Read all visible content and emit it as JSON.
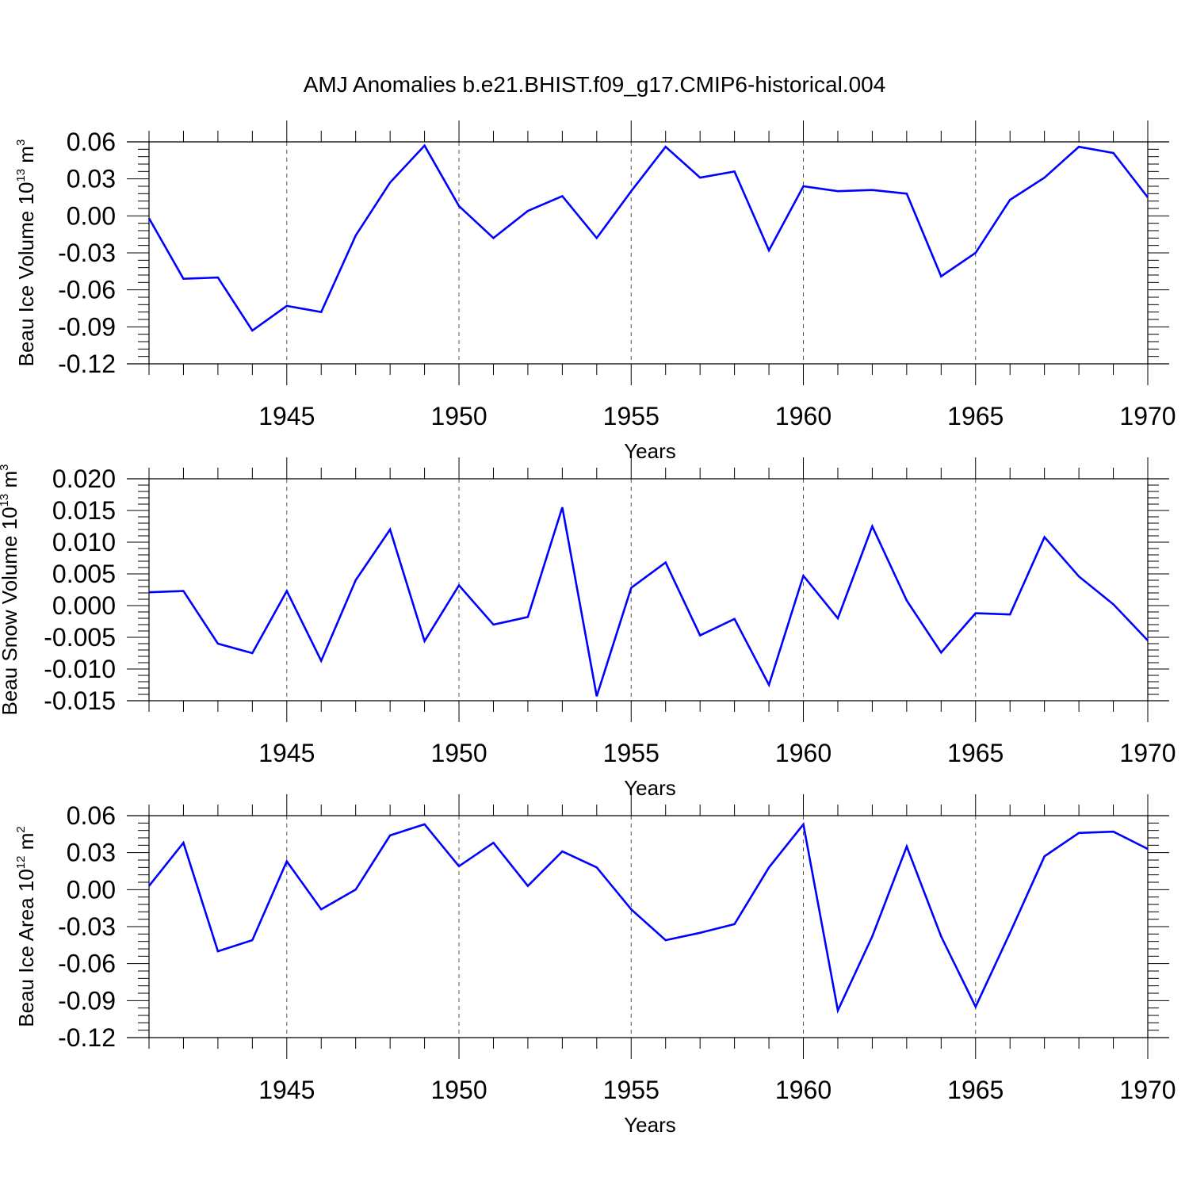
{
  "title": "AMJ Anomalies b.e21.BHIST.f09_g17.CMIP6-historical.004",
  "colors": {
    "line": "#0000ff",
    "axis": "#000000",
    "grid": "#555555"
  },
  "chart_data": [
    {
      "type": "line",
      "ylabel_parts": [
        "Beau Ice Volume 10",
        "13",
        " m",
        "3"
      ],
      "xlabel": "Years",
      "xlim": [
        1941,
        1970
      ],
      "ylim": [
        -0.12,
        0.06
      ],
      "x_ticks": [
        1945,
        1950,
        1955,
        1960,
        1965,
        1970
      ],
      "x_tick_labels": [
        "1945",
        "1950",
        "1955",
        "1960",
        "1965",
        "1970"
      ],
      "y_ticks": [
        -0.12,
        -0.09,
        -0.06,
        -0.03,
        0.0,
        0.03,
        0.06
      ],
      "y_tick_labels": [
        "-0.12",
        "-0.09",
        "-0.06",
        "-0.03",
        "0.00",
        "0.03",
        "0.06"
      ],
      "grid": "dashed vertical at major x ticks",
      "series": [
        {
          "name": "Beau Ice Volume",
          "x": [
            1941,
            1942,
            1943,
            1944,
            1945,
            1946,
            1947,
            1948,
            1949,
            1950,
            1951,
            1952,
            1953,
            1954,
            1955,
            1956,
            1957,
            1958,
            1959,
            1960,
            1961,
            1962,
            1963,
            1964,
            1965,
            1966,
            1967,
            1968,
            1969,
            1970
          ],
          "values": [
            -0.002,
            -0.051,
            -0.05,
            -0.093,
            -0.073,
            -0.078,
            -0.016,
            0.027,
            0.057,
            0.008,
            -0.018,
            0.004,
            0.016,
            -0.018,
            0.02,
            0.056,
            0.031,
            0.036,
            -0.028,
            0.024,
            0.02,
            0.021,
            0.018,
            -0.049,
            -0.03,
            0.013,
            0.031,
            0.056,
            0.051,
            0.015
          ]
        }
      ]
    },
    {
      "type": "line",
      "ylabel_parts": [
        "Beau Snow Volume 10",
        "13",
        " m",
        "3"
      ],
      "xlabel": "Years",
      "xlim": [
        1941,
        1970
      ],
      "ylim": [
        -0.015,
        0.02
      ],
      "x_ticks": [
        1945,
        1950,
        1955,
        1960,
        1965,
        1970
      ],
      "x_tick_labels": [
        "1945",
        "1950",
        "1955",
        "1960",
        "1965",
        "1970"
      ],
      "y_ticks": [
        -0.015,
        -0.01,
        -0.005,
        0.0,
        0.005,
        0.01,
        0.015,
        0.02
      ],
      "y_tick_labels": [
        "-0.015",
        "-0.010",
        "-0.005",
        "0.000",
        "0.005",
        "0.010",
        "0.015",
        "0.020"
      ],
      "grid": "dashed vertical at major x ticks",
      "series": [
        {
          "name": "Beau Snow Volume",
          "x": [
            1941,
            1942,
            1943,
            1944,
            1945,
            1946,
            1947,
            1948,
            1949,
            1950,
            1951,
            1952,
            1953,
            1954,
            1955,
            1956,
            1957,
            1958,
            1959,
            1960,
            1961,
            1962,
            1963,
            1964,
            1965,
            1966,
            1967,
            1968,
            1969,
            1970
          ],
          "values": [
            0.0021,
            0.0023,
            -0.006,
            -0.0075,
            0.0023,
            -0.0087,
            0.004,
            0.012,
            -0.0056,
            0.0032,
            -0.003,
            -0.0018,
            0.0155,
            -0.0143,
            0.0028,
            0.0068,
            -0.0047,
            -0.0021,
            -0.0125,
            0.0047,
            -0.002,
            0.0125,
            0.0008,
            -0.0074,
            -0.0012,
            -0.0014,
            0.0108,
            0.0046,
            0.0002,
            -0.0055
          ]
        }
      ]
    },
    {
      "type": "line",
      "ylabel_parts": [
        "Beau Ice Area 10",
        "12",
        " m",
        "2"
      ],
      "xlabel": "Years",
      "xlim": [
        1941,
        1970
      ],
      "ylim": [
        -0.12,
        0.06
      ],
      "x_ticks": [
        1945,
        1950,
        1955,
        1960,
        1965,
        1970
      ],
      "x_tick_labels": [
        "1945",
        "1950",
        "1955",
        "1960",
        "1965",
        "1970"
      ],
      "y_ticks": [
        -0.12,
        -0.09,
        -0.06,
        -0.03,
        0.0,
        0.03,
        0.06
      ],
      "y_tick_labels": [
        "-0.12",
        "-0.09",
        "-0.06",
        "-0.03",
        "0.00",
        "0.03",
        "0.06"
      ],
      "grid": "dashed vertical at major x ticks",
      "series": [
        {
          "name": "Beau Ice Area",
          "x": [
            1941,
            1942,
            1943,
            1944,
            1945,
            1946,
            1947,
            1948,
            1949,
            1950,
            1951,
            1952,
            1953,
            1954,
            1955,
            1956,
            1957,
            1958,
            1959,
            1960,
            1961,
            1962,
            1963,
            1964,
            1965,
            1966,
            1967,
            1968,
            1969,
            1970
          ],
          "values": [
            0.003,
            0.038,
            -0.05,
            -0.041,
            0.023,
            -0.016,
            0.0,
            0.044,
            0.053,
            0.019,
            0.038,
            0.003,
            0.031,
            0.018,
            -0.016,
            -0.041,
            -0.035,
            -0.028,
            0.018,
            0.053,
            -0.098,
            -0.038,
            0.035,
            -0.038,
            -0.095,
            -0.035,
            0.027,
            0.046,
            0.047,
            0.033
          ]
        }
      ]
    }
  ]
}
